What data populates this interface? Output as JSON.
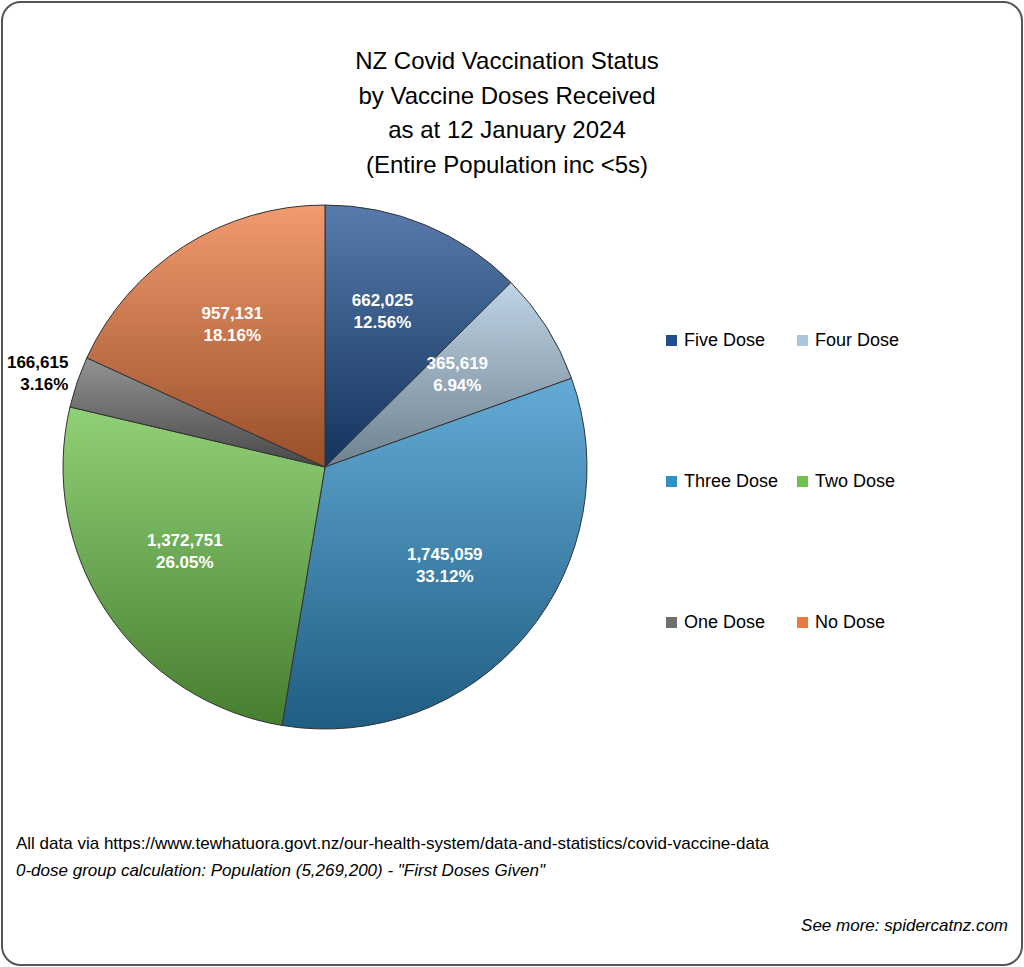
{
  "chart_data": {
    "type": "pie",
    "title": [
      "NZ Covid Vaccination Status",
      "by Vaccine Doses Received",
      "as at 12 January 2024",
      "(Entire Population inc <5s)"
    ],
    "categories": [
      "Five Dose",
      "Four Dose",
      "Three Dose",
      "Two Dose",
      "One Dose",
      "No Dose"
    ],
    "values": [
      12.56,
      6.94,
      33.12,
      26.05,
      3.16,
      18.16
    ],
    "value_labels": [
      "12.56%",
      "6.94%",
      "33.12%",
      "26.05%",
      "3.16%",
      "18.16%"
    ],
    "counts": [
      662025,
      365619,
      1745059,
      1372751,
      166615,
      957131
    ],
    "count_labels": [
      "662,025",
      "365,619",
      "1,745,059",
      "1,372,751",
      "166,615",
      "957,131"
    ],
    "colors": [
      "#1f4f8f",
      "#a9c6dc",
      "#2f8fc8",
      "#6cc24a",
      "#6f6f6f",
      "#ec7a3f"
    ],
    "data_labels": true,
    "legend": "right",
    "annotations": [
      "All data via https://www.tewhatuora.govt.nz/our-health-system/data-and-statistics/covid-vaccine-data",
      "0-dose group calculation: Population (5,269,200) - \"First Doses Given\"",
      "See more: spidercatnz.com"
    ]
  }
}
